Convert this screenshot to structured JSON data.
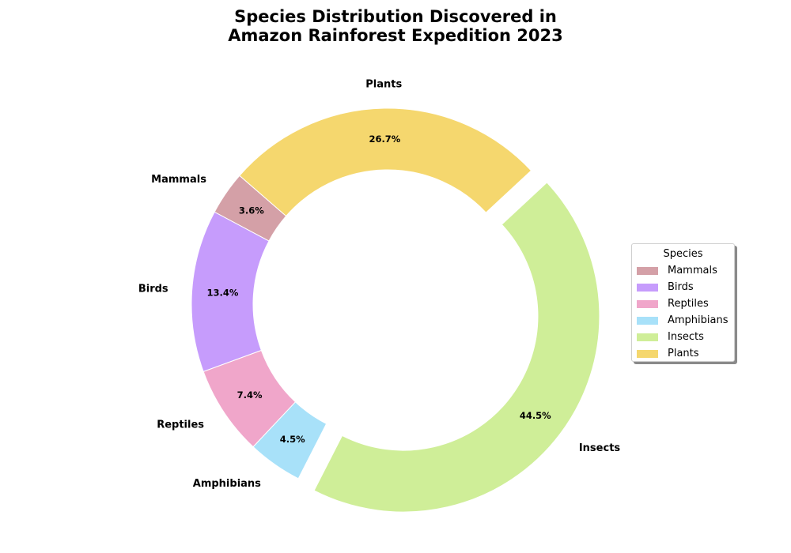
{
  "chart_data": {
    "type": "pie",
    "title": "Species Distribution Discovered in\nAmazon Rainforest Expedition 2023",
    "donut": true,
    "start_angle_deg": 139,
    "direction": "counterclockwise",
    "legend": {
      "title": "Species",
      "placement": "right"
    },
    "slices": [
      {
        "label": "Mammals",
        "value": 3.6,
        "pct_label": "3.6%",
        "color": "#D4A0A7",
        "explode": false
      },
      {
        "label": "Birds",
        "value": 13.4,
        "pct_label": "13.4%",
        "color": "#C69CFC",
        "explode": false
      },
      {
        "label": "Reptiles",
        "value": 7.4,
        "pct_label": "7.4%",
        "color": "#F0A6CA",
        "explode": false
      },
      {
        "label": "Amphibians",
        "value": 4.5,
        "pct_label": "4.5%",
        "color": "#A8E1F9",
        "explode": false
      },
      {
        "label": "Insects",
        "value": 44.5,
        "pct_label": "44.5%",
        "color": "#CFEE98",
        "explode": true
      },
      {
        "label": "Plants",
        "value": 26.7,
        "pct_label": "26.7%",
        "color": "#F5D76E",
        "explode": false
      }
    ]
  }
}
